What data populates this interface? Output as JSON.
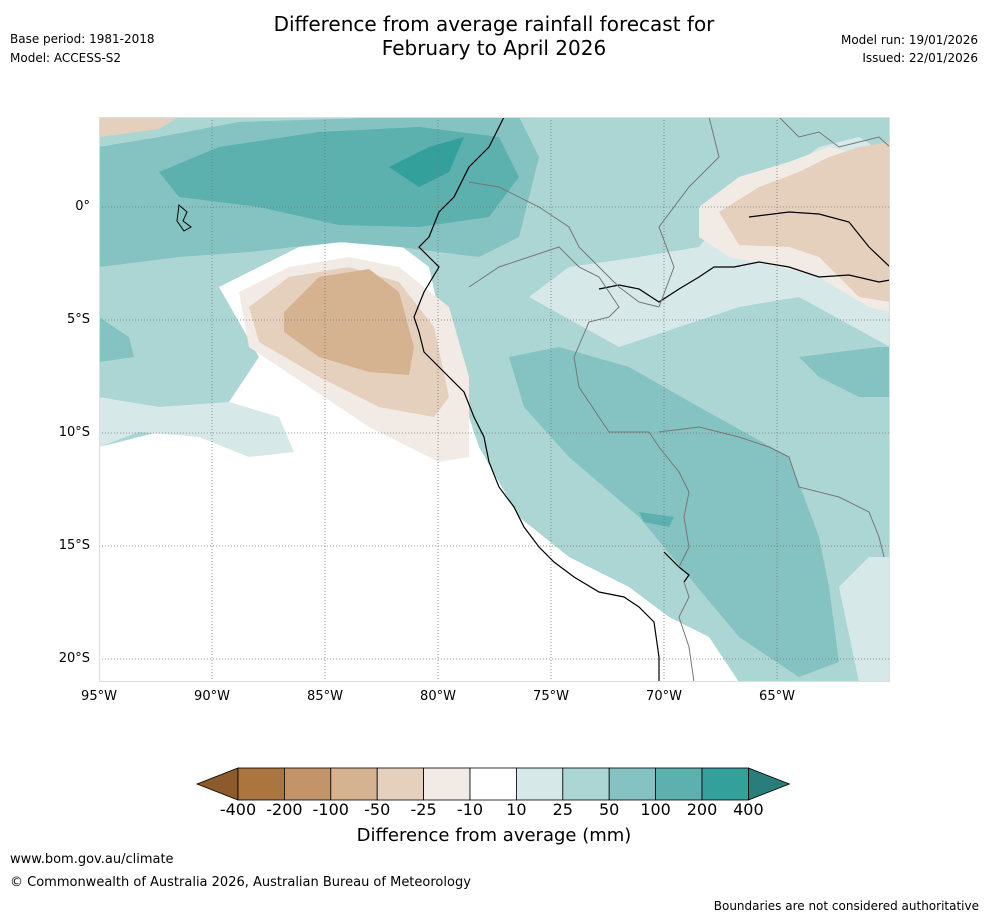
{
  "header": {
    "base_period": "Base period: 1981-2018",
    "model": "Model: ACCESS-S2",
    "title_line1": "Difference from average rainfall forecast for",
    "title_line2": "February to April 2026",
    "model_run": "Model run: 19/01/2026",
    "issued": "Issued: 22/01/2026"
  },
  "map": {
    "lat_labels": [
      "0°",
      "5°S",
      "10°S",
      "15°S",
      "20°S"
    ],
    "lon_labels": [
      "95°W",
      "90°W",
      "85°W",
      "80°W",
      "75°W",
      "70°W",
      "65°W"
    ]
  },
  "colorbar": {
    "ticks": [
      "-400",
      "-200",
      "-100",
      "-50",
      "-25",
      "-10",
      "10",
      "25",
      "50",
      "100",
      "200",
      "400"
    ],
    "colors": [
      "#8c5a2b",
      "#ab7540",
      "#c3946a",
      "#d5b391",
      "#e5d0be",
      "#f2ebe5",
      "#ffffff",
      "#d6e9e8",
      "#acd6d4",
      "#84c3c1",
      "#5cb0ae",
      "#34a09c",
      "#297e7b"
    ],
    "title": "Difference from average (mm)"
  },
  "footer": {
    "url": "www.bom.gov.au/climate",
    "copyright": "© Commonwealth of Australia 2026, Australian Bureau of Meteorology",
    "disclaimer": "Boundaries are not considered authoritative"
  }
}
